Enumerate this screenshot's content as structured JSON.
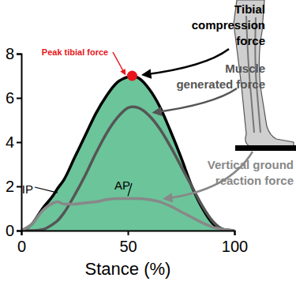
{
  "chart_data": {
    "type": "line",
    "x_label": "Stance (%)",
    "x": [
      0,
      5,
      10,
      15,
      17,
      20,
      25,
      30,
      35,
      40,
      45,
      50,
      52,
      55,
      60,
      65,
      70,
      75,
      80,
      85,
      90,
      95,
      100
    ],
    "series": [
      {
        "name": "Tibial compression force",
        "type": "area",
        "color": "#6cc49a",
        "values": [
          0,
          0.3,
          1.0,
          1.6,
          1.9,
          2.3,
          3.3,
          4.3,
          5.3,
          6.1,
          6.7,
          6.95,
          7.0,
          6.9,
          6.4,
          5.6,
          4.5,
          3.3,
          2.0,
          1.0,
          0.3,
          0.05,
          0
        ]
      },
      {
        "name": "Muscle generated force",
        "type": "line",
        "color": "#555555",
        "values": [
          0,
          0,
          0.05,
          0.3,
          0.45,
          0.8,
          1.6,
          2.5,
          3.5,
          4.4,
          5.1,
          5.55,
          5.6,
          5.55,
          5.2,
          4.6,
          3.8,
          2.9,
          2.0,
          1.1,
          0.4,
          0.05,
          0
        ]
      },
      {
        "name": "Vertical ground reaction force",
        "type": "line",
        "color": "#888888",
        "values": [
          0,
          0.3,
          0.9,
          1.25,
          1.3,
          1.2,
          1.2,
          1.25,
          1.3,
          1.4,
          1.45,
          1.45,
          1.45,
          1.45,
          1.4,
          1.3,
          1.1,
          0.85,
          0.6,
          0.35,
          0.15,
          0.05,
          0
        ]
      }
    ],
    "annotations": [
      {
        "text": "Peak tibial force",
        "x": 52,
        "y": 7.0,
        "marker": "circle",
        "color": "#e8141b"
      },
      {
        "text": "IP",
        "x": 17,
        "y": 1.6
      },
      {
        "text": "AP",
        "x": 50,
        "y": 1.45
      }
    ],
    "xlim": [
      0,
      100
    ],
    "xticks": [
      0,
      50,
      100
    ],
    "ylim": [
      0,
      8
    ],
    "yticks": [
      0,
      2,
      4,
      6,
      8
    ],
    "grid": false
  }
}
